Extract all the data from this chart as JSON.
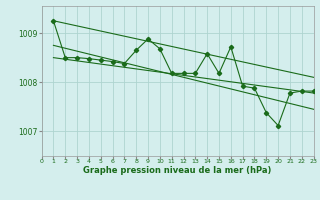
{
  "title": "Graphe pression niveau de la mer (hPa)",
  "background_color": "#d4eeed",
  "grid_color": "#aed4d0",
  "line_color": "#1a6b1a",
  "xlim": [
    0,
    23
  ],
  "ylim": [
    1006.5,
    1009.55
  ],
  "yticks": [
    1007,
    1008,
    1009
  ],
  "xticks": [
    0,
    1,
    2,
    3,
    4,
    5,
    6,
    7,
    8,
    9,
    10,
    11,
    12,
    13,
    14,
    15,
    16,
    17,
    18,
    19,
    20,
    21,
    22,
    23
  ],
  "main_series_x": [
    1,
    2,
    3,
    4,
    5,
    6,
    7,
    8,
    9,
    10,
    11,
    12,
    13,
    14,
    15,
    16,
    17,
    18,
    19,
    20,
    21,
    22,
    23
  ],
  "main_series_y": [
    1009.25,
    1008.5,
    1008.5,
    1008.48,
    1008.45,
    1008.42,
    1008.38,
    1008.65,
    1008.88,
    1008.68,
    1008.18,
    1008.18,
    1008.18,
    1008.58,
    1008.18,
    1008.72,
    1007.92,
    1007.88,
    1007.38,
    1007.12,
    1007.78,
    1007.82,
    1007.82
  ],
  "upper_line_x": [
    1,
    23
  ],
  "upper_line_y": [
    1009.25,
    1008.1
  ],
  "lower_line1_x": [
    1,
    23
  ],
  "lower_line1_y": [
    1008.5,
    1007.78
  ],
  "lower_line2_x": [
    1,
    23
  ],
  "lower_line2_y": [
    1008.75,
    1007.45
  ]
}
